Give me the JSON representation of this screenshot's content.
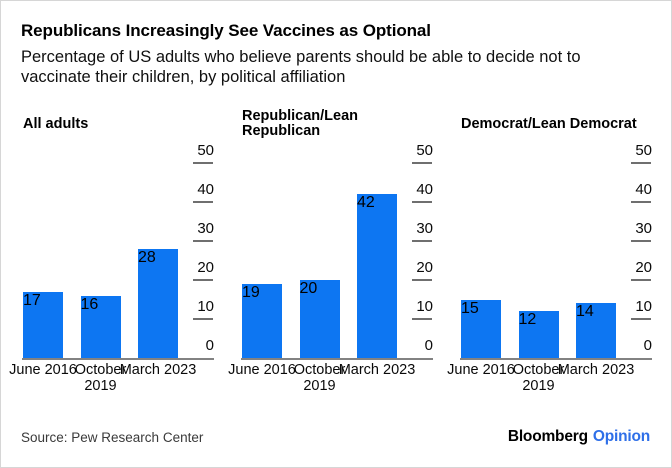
{
  "header": {
    "title": "Republicans Increasingly See Vaccines as Optional",
    "subtitle": "Percentage of US adults who believe parents should be able to decide not to\nvaccinate their children, by political affiliation"
  },
  "chart_data": [
    {
      "type": "bar",
      "title": "All adults",
      "categories": [
        "June 2016",
        "October 2019",
        "March 2023"
      ],
      "values": [
        17,
        16,
        28
      ],
      "ylim": [
        0,
        50
      ],
      "yticks": [
        0,
        10,
        20,
        30,
        40,
        50
      ],
      "axis_side": "right",
      "grid": "off",
      "unit": "percent"
    },
    {
      "type": "bar",
      "title": "Republican/Lean\nRepublican",
      "categories": [
        "June 2016",
        "October 2019",
        "March 2023"
      ],
      "values": [
        19,
        20,
        42
      ],
      "ylim": [
        0,
        50
      ],
      "yticks": [
        0,
        10,
        20,
        30,
        40,
        50
      ],
      "axis_side": "right",
      "grid": "off",
      "unit": "percent"
    },
    {
      "type": "bar",
      "title": "Democrat/Lean Democrat",
      "categories": [
        "June 2016",
        "October 2019",
        "March 2023"
      ],
      "values": [
        15,
        12,
        14
      ],
      "ylim": [
        0,
        50
      ],
      "yticks": [
        0,
        10,
        20,
        30,
        40,
        50
      ],
      "axis_side": "right",
      "grid": "off",
      "unit": "percent"
    }
  ],
  "footer": {
    "source": "Source: Pew Research Center",
    "brand": "Bloomberg",
    "brand_suffix": "Opinion"
  },
  "colors": {
    "bar": "#0d76f2",
    "opinion_blue": "#2e6fe8",
    "baseline": "#828282",
    "tick": "#6f6f6f",
    "text": "#000000",
    "source_text": "#3a3a3a"
  }
}
